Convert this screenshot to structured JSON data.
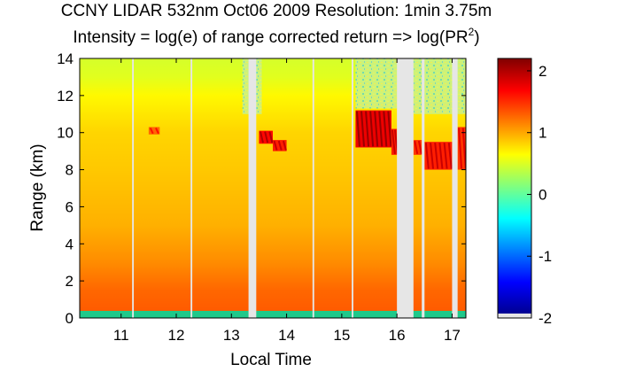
{
  "chart_data": {
    "type": "heatmap",
    "title": "CCNY LIDAR 532nm Oct06 2009 Resolution: 1min 3.75m",
    "subtitle": "Intensity = log(e) of range corrected return => log(PR",
    "subtitle_superscript": "2",
    "subtitle_suffix": ")",
    "xlabel": "Local Time",
    "ylabel": "Range (km)",
    "xlim": [
      10.25,
      17.25
    ],
    "ylim": [
      0,
      14
    ],
    "x_ticks": [
      "11",
      "12",
      "13",
      "14",
      "15",
      "16",
      "17"
    ],
    "x_tick_values": [
      11,
      12,
      13,
      14,
      15,
      16,
      17
    ],
    "y_ticks": [
      "0",
      "2",
      "4",
      "6",
      "8",
      "10",
      "12",
      "14"
    ],
    "y_tick_values": [
      0,
      2,
      4,
      6,
      8,
      10,
      12,
      14
    ],
    "colorbar": {
      "colormap": "jet",
      "range": [
        -2,
        2.2
      ],
      "ticks": [
        "2",
        "1",
        "0",
        "-1",
        "-2"
      ],
      "tick_values": [
        2,
        1,
        0,
        -1,
        -2
      ]
    },
    "intensity_by_range": [
      {
        "range_km": 0.1,
        "value": 0.4
      },
      {
        "range_km": 0.4,
        "value": 1.3
      },
      {
        "range_km": 1.5,
        "value": 1.25
      },
      {
        "range_km": 3,
        "value": 1.1
      },
      {
        "range_km": 5,
        "value": 0.95
      },
      {
        "range_km": 8,
        "value": 0.85
      },
      {
        "range_km": 10,
        "value": 0.8
      },
      {
        "range_km": 12,
        "value": 0.65
      },
      {
        "range_km": 13,
        "value": 0.5
      },
      {
        "range_km": 14,
        "value": 0.45
      }
    ],
    "data_gaps": [
      {
        "start": 11.2,
        "end": 11.23
      },
      {
        "start": 12.26,
        "end": 12.29
      },
      {
        "start": 13.31,
        "end": 13.45
      },
      {
        "start": 14.47,
        "end": 14.5
      },
      {
        "start": 15.18,
        "end": 15.21
      },
      {
        "start": 16.0,
        "end": 16.3
      },
      {
        "start": 16.45,
        "end": 16.5
      },
      {
        "start": 17.0,
        "end": 17.1
      }
    ],
    "cloud_features": [
      {
        "x_start": 13.5,
        "x_end": 13.75,
        "y_top": 10.1,
        "y_bottom": 9.4,
        "value": 2.0
      },
      {
        "x_start": 13.75,
        "x_end": 14.0,
        "y_top": 9.6,
        "y_bottom": 9.0,
        "value": 1.9
      },
      {
        "x_start": 15.25,
        "x_end": 15.9,
        "y_top": 11.2,
        "y_bottom": 9.2,
        "value": 2.1
      },
      {
        "x_start": 15.9,
        "x_end": 16.0,
        "y_top": 10.2,
        "y_bottom": 8.8,
        "value": 1.9
      },
      {
        "x_start": 16.3,
        "x_end": 16.45,
        "y_top": 9.6,
        "y_bottom": 8.8,
        "value": 1.8
      },
      {
        "x_start": 16.5,
        "x_end": 17.0,
        "y_top": 9.5,
        "y_bottom": 8.0,
        "value": 1.9
      },
      {
        "x_start": 17.1,
        "x_end": 17.25,
        "y_top": 10.3,
        "y_bottom": 8.0,
        "value": 1.8
      },
      {
        "x_start": 11.5,
        "x_end": 11.7,
        "y_top": 10.3,
        "y_bottom": 9.9,
        "value": 1.6
      }
    ],
    "noise_above_cloud": [
      {
        "x_start": 13.2,
        "x_end": 13.55,
        "y_bottom": 11.0
      },
      {
        "x_start": 15.25,
        "x_end": 16.0,
        "y_bottom": 11.3
      },
      {
        "x_start": 16.3,
        "x_end": 17.25,
        "y_bottom": 11.0
      }
    ],
    "colors": {
      "gap": "#e6e6e6",
      "surface": "#1fc98a"
    }
  }
}
